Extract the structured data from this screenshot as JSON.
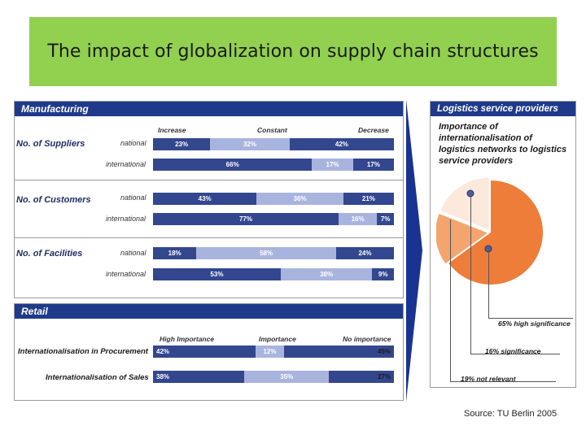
{
  "title": "The impact of globalization on supply chain structures",
  "source": "Source: TU Berlin 2005",
  "colors": {
    "dark": "#33478f",
    "light": "#a9b4de",
    "header": "#1f3a8a",
    "title_band": "#92d050",
    "pie_high": "#ee7d3a",
    "pie_sig": "#f4a56f",
    "pie_not": "#fde9dc",
    "arrow": "#1a3391"
  },
  "manufacturing": {
    "heading": "Manufacturing",
    "columns": [
      "Increase",
      "Constant",
      "Decrease"
    ],
    "groups": [
      {
        "label": "No. of Suppliers",
        "rows": [
          {
            "sub": "national",
            "values": [
              23,
              32,
              42
            ],
            "labels": [
              "23%",
              "32%",
              "42%"
            ]
          },
          {
            "sub": "international",
            "values": [
              66,
              17,
              17
            ],
            "labels": [
              "66%",
              "17%",
              "17%"
            ]
          }
        ]
      },
      {
        "label": "No. of Customers",
        "rows": [
          {
            "sub": "national",
            "values": [
              43,
              36,
              21
            ],
            "labels": [
              "43%",
              "36%",
              "21%"
            ]
          },
          {
            "sub": "international",
            "values": [
              77,
              16,
              7
            ],
            "labels": [
              "77%",
              "16%",
              "7%"
            ]
          }
        ]
      },
      {
        "label": "No. of Facilities",
        "rows": [
          {
            "sub": "national",
            "values": [
              18,
              58,
              24
            ],
            "labels": [
              "18%",
              "58%",
              "24%"
            ]
          },
          {
            "sub": "international",
            "values": [
              53,
              38,
              9
            ],
            "labels": [
              "53%",
              "38%",
              "9%"
            ]
          }
        ]
      }
    ]
  },
  "retail": {
    "heading": "Retail",
    "columns": [
      "High Importance",
      "Importance",
      "No importance"
    ],
    "rows": [
      {
        "label": "Internationalisation in Procurement",
        "values": [
          42,
          12,
          45
        ],
        "labels": [
          "42%",
          "12%",
          "45%"
        ]
      },
      {
        "label": "Internationalisation of Sales",
        "values": [
          38,
          35,
          27
        ],
        "labels": [
          "38%",
          "35%",
          "27%"
        ]
      }
    ]
  },
  "logistics": {
    "heading": "Logistics service providers",
    "note": "Importance of internationalisation of logistics networks to logistics service providers",
    "slice_labels": [
      "65% high significance",
      "16% significance",
      "19% not relevant"
    ]
  },
  "chart_data": [
    {
      "type": "bar",
      "title": "Manufacturing",
      "stacked": true,
      "orientation": "horizontal",
      "categories": [
        "No. of Suppliers national",
        "No. of Suppliers international",
        "No. of Customers national",
        "No. of Customers international",
        "No. of Facilities national",
        "No. of Facilities international"
      ],
      "series": [
        {
          "name": "Increase",
          "values": [
            23,
            66,
            43,
            77,
            18,
            53
          ]
        },
        {
          "name": "Constant",
          "values": [
            32,
            17,
            36,
            16,
            58,
            38
          ]
        },
        {
          "name": "Decrease",
          "values": [
            42,
            17,
            21,
            7,
            24,
            9
          ]
        }
      ]
    },
    {
      "type": "bar",
      "title": "Retail",
      "stacked": true,
      "orientation": "horizontal",
      "categories": [
        "Internationalisation in Procurement",
        "Internationalisation of Sales"
      ],
      "series": [
        {
          "name": "High Importance",
          "values": [
            42,
            38
          ]
        },
        {
          "name": "Importance",
          "values": [
            12,
            35
          ]
        },
        {
          "name": "No importance",
          "values": [
            45,
            27
          ]
        }
      ]
    },
    {
      "type": "pie",
      "title": "Logistics service providers",
      "categories": [
        "high significance",
        "significance",
        "not relevant"
      ],
      "values": [
        65,
        16,
        19
      ]
    }
  ]
}
